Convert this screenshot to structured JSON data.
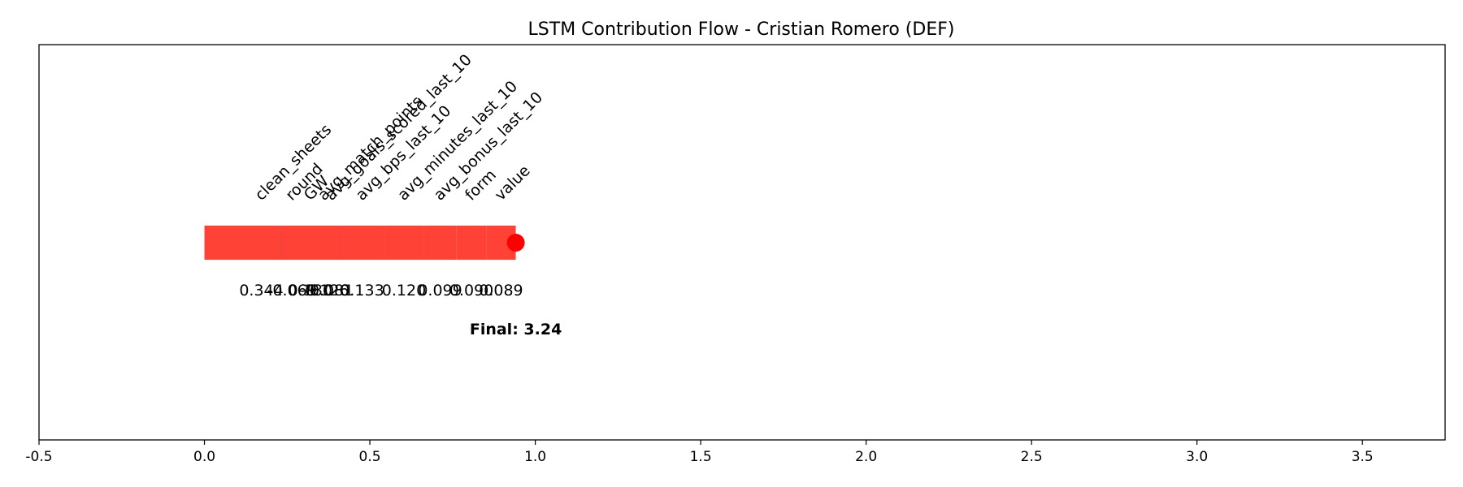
{
  "chart_data": {
    "type": "bar",
    "title": "LSTM Contribution Flow - Cristian Romero (DEF)",
    "xlim": [
      -0.5,
      3.75
    ],
    "xticks": [
      "-0.5",
      "0.0",
      "0.5",
      "1.0",
      "1.5",
      "2.0",
      "2.5",
      "3.0",
      "3.5"
    ],
    "xtick_values": [
      -0.5,
      0.0,
      0.5,
      1.0,
      1.5,
      2.0,
      2.5,
      3.0,
      3.5
    ],
    "positive_color": "#ff4136",
    "negative_color": "#0074d9",
    "end_marker_color": "#ff0000",
    "contributions": [
      {
        "feature": "clean_sheets",
        "value": 0.344,
        "label": "0.344"
      },
      {
        "feature": "avg_goals_scored_last_10",
        "value": 0.081,
        "label": "0.081"
      },
      {
        "feature": "avg_match_points",
        "value": -0.126,
        "label": "-0.126"
      },
      {
        "feature": "round",
        "value": -0.069,
        "label": "-0.069"
      },
      {
        "feature": "GW",
        "value": 0.18,
        "label": "0.180"
      },
      {
        "feature": "avg_bps_last_10",
        "value": 0.133,
        "label": "0.133"
      },
      {
        "feature": "avg_minutes_last_10",
        "value": 0.12,
        "label": "0.120"
      },
      {
        "feature": "avg_bonus_last_10",
        "value": 0.099,
        "label": "0.099"
      },
      {
        "feature": "form",
        "value": 0.09,
        "label": "0.090"
      },
      {
        "feature": "value",
        "value": 0.089,
        "label": "0.089"
      }
    ],
    "final_label": "Final: 3.24"
  }
}
